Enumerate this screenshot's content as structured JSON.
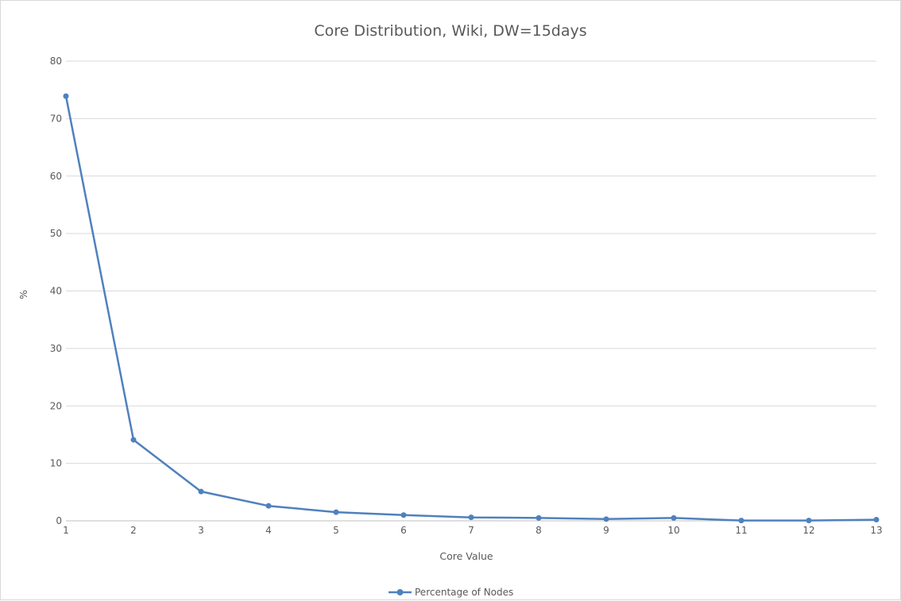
{
  "chart_data": {
    "type": "line",
    "title": "Core Distribution, Wiki, DW=15days",
    "xlabel": "Core Value",
    "ylabel": "%",
    "categories": [
      "1",
      "2",
      "3",
      "4",
      "5",
      "6",
      "7",
      "8",
      "9",
      "10",
      "11",
      "12",
      "13"
    ],
    "series": [
      {
        "name": "Percentage of Nodes",
        "color": "#4f81bd",
        "values": [
          73.9,
          14.1,
          5.1,
          2.6,
          1.5,
          1.0,
          0.6,
          0.5,
          0.3,
          0.5,
          0.05,
          0.05,
          0.2
        ]
      }
    ],
    "ylim": [
      0,
      80
    ],
    "yticks": [
      "0",
      "10",
      "20",
      "30",
      "40",
      "50",
      "60",
      "70",
      "80"
    ],
    "grid": true,
    "legend_position": "bottom",
    "colors": {
      "gridline": "#d9d9d9",
      "axis": "#bfbfbf",
      "text": "#595959"
    }
  }
}
